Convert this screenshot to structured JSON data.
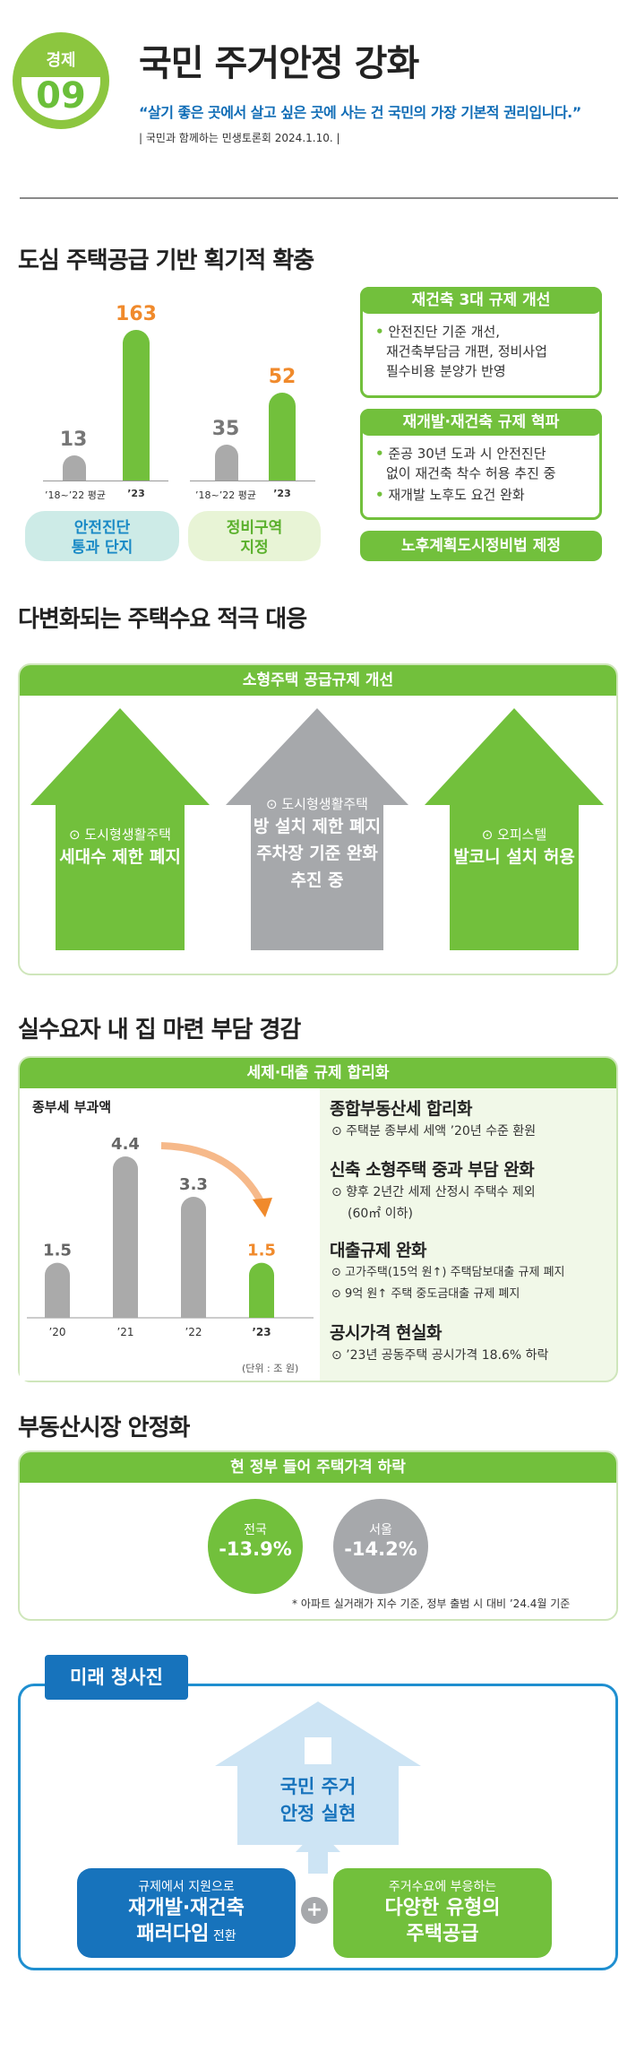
{
  "header": {
    "badge_top": "경제",
    "badge_num": "09",
    "title": "국민 주거안정 강화",
    "quote": "“살기 좋은 곳에서 살고 싶은 곳에 사는 건 국민의 가장 기본적 권리입니다.”",
    "source": "| 국민과 함께하는 민생토론회 2024.1.10. |"
  },
  "sec1": {
    "title": "도심 주택공급 기반 획기적 확충",
    "chart1": {
      "avg_val": "13",
      "cur_val": "163",
      "avg_lbl": "’18~’22 평균",
      "cur_lbl": "’23",
      "pill": "안전진단\n통과 단지"
    },
    "chart2": {
      "avg_val": "35",
      "cur_val": "52",
      "avg_lbl": "’18~’22 평균",
      "cur_lbl": "’23",
      "pill": "정비구역\n지정"
    },
    "box1": {
      "head": "재건축 3대 규제 개선",
      "l1": "안전진단 기준 개선,",
      "l2": "재건축부담금 개편, 정비사업",
      "l3": "필수비용 분양가 반영"
    },
    "box2": {
      "head": "재개발·재건축 규제 혁파",
      "l1": "준공 30년 도과 시 안전진단",
      "l2": "없이 재건축 착수 허용 추진 중",
      "l3": "재개발 노후도 요건 완화"
    },
    "box3": "노후계획도시정비법 제정"
  },
  "sec2": {
    "title": "다변화되는 주택수요 적극 대응",
    "head": "소형주택 공급규제 개선",
    "h1": {
      "sub": "⊙ 도시형생활주택",
      "main": "세대수 제한 폐지"
    },
    "h2": {
      "sub": "⊙ 도시형생활주택",
      "l1": "방 설치 제한 폐지",
      "l2": "주차장 기준 완화",
      "l3": "추진 중"
    },
    "h3": {
      "sub": "⊙ 오피스텔",
      "main": "발코니 설치 허용"
    }
  },
  "sec3": {
    "title": "실수요자 내 집 마련 부담 경감",
    "head": "세제·대출 규제 합리화",
    "chart_title": "종부세 부과액",
    "unit": "(단위 : 조 원)",
    "r1h": "종합부동산세 합리화",
    "r1a": "⊙ 주택분 종부세 세액 ’20년 수준 환원",
    "r2h": "신축 소형주택 중과 부담 완화",
    "r2a": "⊙ 향후 2년간 세제 산정시 주택수 제외",
    "r2b": "(60㎡ 이하)",
    "r3h": "대출규제 완화",
    "r3a": "⊙ 고가주택(15억 원↑) 주택담보대출 규제 폐지",
    "r3b": "⊙ 9억 원↑ 주택 중도금대출 규제 폐지",
    "r4h": "공시가격 현실화",
    "r4a": "⊙ ’23년 공동주택 공시가격 18.6% 하락"
  },
  "chart_data": {
    "type": "bar",
    "title": "종부세 부과액",
    "categories": [
      "’20",
      "’21",
      "’22",
      "’23"
    ],
    "values": [
      1.5,
      4.4,
      3.3,
      1.5
    ],
    "unit": "(단위 : 조 원)",
    "colors": [
      "#aaaaaa",
      "#aaaaaa",
      "#aaaaaa",
      "#72c03c"
    ]
  },
  "sec4": {
    "title": "부동산시장 안정화",
    "head": "현 정부 들어 주택가격 하락",
    "c1_lbl": "전국",
    "c1_val": "-13.9%",
    "c2_lbl": "서울",
    "c2_val": "-14.2%",
    "note": "* 아파트 실거래가 지수 기준, 정부 출범 시 대비 ’24.4월 기준"
  },
  "sec5": {
    "tag": "미래 청사진",
    "house_l1": "국민 주거",
    "house_l2": "안정 실현",
    "left_sub": "규제에서 지원으로",
    "left_l1": "재개발·재건축",
    "left_l2": "패러다임",
    "left_l2b": " 전환",
    "right_sub": "주거수요에 부응하는",
    "right_l1": "다양한 유형의",
    "right_l2": "주택공급",
    "plus": "+"
  }
}
